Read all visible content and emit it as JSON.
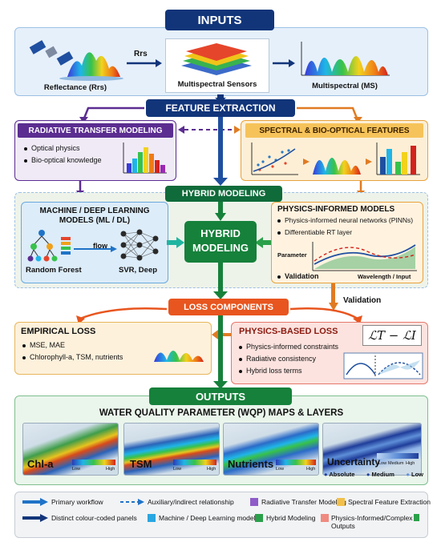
{
  "inputs": {
    "title": "INPUTS",
    "reflectance_label": "Reflectance (Rrs)",
    "rrs_arrow_label": "Rrs",
    "sensors_label": "Multispectral Sensors",
    "ms_label": "Multispectral (MS)"
  },
  "feature_extraction": {
    "title": "FEATURE EXTRACTION"
  },
  "radiative": {
    "title": "RADIATIVE TRANSFER MODELING",
    "bullets": [
      "Optical physics",
      "Bio-optical knowledge"
    ]
  },
  "spectral": {
    "title": "SPECTRAL & BIO-OPTICAL FEATURES"
  },
  "hybrid_header": {
    "title": "HYBRID MODELING"
  },
  "ml": {
    "title_line1": "MACHINE / DEEP LEARNING",
    "title_line2": "MODELS (ML / DL)",
    "flow_label": "flow",
    "rf_label": "Random Forest",
    "svr_label": "SVR, Deep"
  },
  "hybrid_center": {
    "line1": "HYBRID",
    "line2": "MODELING"
  },
  "physics_models": {
    "title": "PHYSICS-INFORMED MODELS",
    "bullets": [
      "Physics-informed neural networks (PINNs)",
      "Differentiable RT layer"
    ],
    "chart_ylabel": "Parameter",
    "chart_xlabel": "Wavelength / Input",
    "validation_bullet": "Validation"
  },
  "validation_side": "Validation",
  "loss_header": {
    "title": "LOSS COMPONENTS"
  },
  "empirical": {
    "title": "EMPIRICAL LOSS",
    "bullets": [
      "MSE, MAE",
      "Chlorophyll-a, TSM, nutrients"
    ]
  },
  "physics_loss": {
    "title": "PHYSICS-BASED LOSS",
    "formula": "ℒT − ℒI",
    "bullets": [
      "Physics-informed constraints",
      "Radiative consistency",
      "Hybrid loss terms"
    ]
  },
  "outputs": {
    "title": "OUTPUTS",
    "subtitle": "WATER QUALITY PARAMETER (WQP) MAPS & LAYERS",
    "maps": [
      {
        "name": "Chl-a",
        "low": "Low",
        "high": "High"
      },
      {
        "name": "TSM",
        "low": "Low",
        "high": "High"
      },
      {
        "name": "Nutrients",
        "low": "Low",
        "high": "High"
      },
      {
        "name": "Uncertainty",
        "low": "Low",
        "medium": "Medium",
        "high": "High"
      }
    ],
    "uncertainty_legend": [
      "Absolute",
      "Medium",
      "Low"
    ]
  },
  "legend": {
    "primary": "Primary workflow",
    "auxiliary": "Auxiliary/indirect relationship",
    "rtm": "Radiative Transfer Modeling",
    "sfe": "Spectral Feature Extraction",
    "distinct": "Distinct colour-coded panels",
    "mldl": "Machine / Deep Learning models",
    "hybrid": "Hybrid Modeling",
    "pi_prefix": "Physics-Informed/Complex",
    "pi_suffix": "Outputs"
  },
  "colors": {
    "navy": "#12357a",
    "purple": "#5b2d91",
    "orange": "#e07b22",
    "green": "#1e8a3c",
    "red_orange": "#e8551e",
    "blue_arrow": "#1f73c7"
  }
}
